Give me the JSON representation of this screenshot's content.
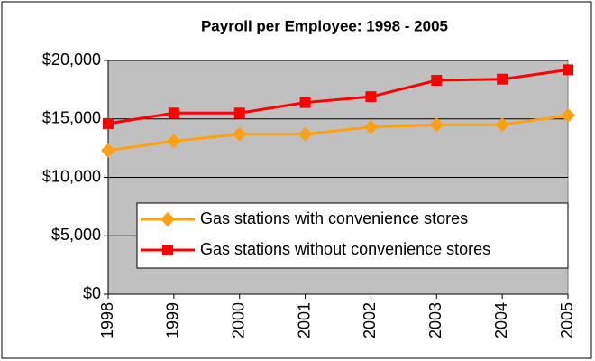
{
  "chart_data": {
    "type": "line",
    "title": "Payroll per Employee: 1998 - 2005",
    "categories": [
      "1998",
      "1999",
      "2000",
      "2001",
      "2002",
      "2003",
      "2004",
      "2005"
    ],
    "series": [
      {
        "name": "Gas stations with convenience stores",
        "color": "#ffa010",
        "marker": "diamond",
        "values": [
          12300,
          13100,
          13700,
          13700,
          14300,
          14500,
          14500,
          15300
        ]
      },
      {
        "name": "Gas stations without convenience stores",
        "color": "#ff0000",
        "marker": "square",
        "values": [
          14600,
          15500,
          15500,
          16400,
          16900,
          18300,
          18400,
          19200
        ]
      }
    ],
    "ylim": [
      0,
      20000
    ],
    "yticks": [
      {
        "value": 0,
        "label": "$0"
      },
      {
        "value": 5000,
        "label": "$5,000"
      },
      {
        "value": 10000,
        "label": "$10,000"
      },
      {
        "value": 15000,
        "label": "$15,000"
      },
      {
        "value": 20000,
        "label": "$20,000"
      }
    ],
    "grid": true,
    "legend": "lower-right"
  }
}
